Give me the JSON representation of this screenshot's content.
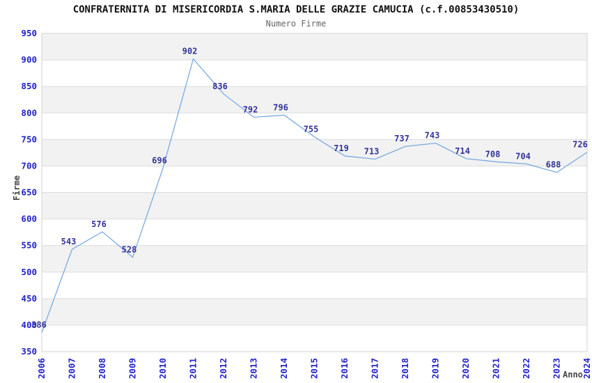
{
  "chart_data": {
    "type": "line",
    "title": "CONFRATERNITA DI MISERICORDIA S.MARIA DELLE GRAZIE CAMUCIA (c.f.00853430510)",
    "subtitle": "Numero Firme",
    "xlabel": "Anno",
    "ylabel": "Firme",
    "categories": [
      "2006",
      "2007",
      "2008",
      "2009",
      "2010",
      "2011",
      "2012",
      "2013",
      "2014",
      "2015",
      "2016",
      "2017",
      "2018",
      "2019",
      "2020",
      "2021",
      "2022",
      "2023",
      "2024"
    ],
    "values": [
      386,
      543,
      576,
      528,
      696,
      902,
      836,
      792,
      796,
      755,
      719,
      713,
      737,
      743,
      714,
      708,
      704,
      688,
      726
    ],
    "ylim": [
      350,
      950
    ],
    "ytick_step": 50,
    "grid": "horizontal-bands",
    "legend": "none",
    "colors": {
      "line": "#7aaae0",
      "value_label": "#333399",
      "tick_label": "#2222cc",
      "band": "#f2f2f2",
      "gridline": "#dcdcdc",
      "plot_border": "#d3d3d3",
      "title": "#111111",
      "subtitle": "#666666",
      "axis_title": "#444444"
    }
  }
}
